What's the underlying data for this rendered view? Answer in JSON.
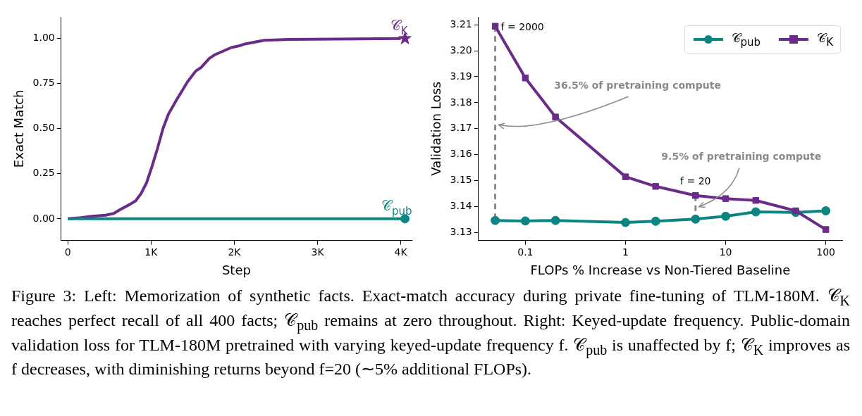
{
  "chart_data": [
    {
      "type": "line",
      "xlabel": "Step",
      "ylabel": "Exact Match",
      "xlim": [
        -80,
        4130
      ],
      "xticks": [
        0,
        {
          "value": 1000,
          "label": "1K"
        },
        {
          "value": 2000,
          "label": "2K"
        },
        {
          "value": 3000,
          "label": "3K"
        },
        {
          "value": 4000,
          "label": "4K"
        }
      ],
      "ylim": [
        -0.12,
        1.12
      ],
      "yticks": [
        {
          "value": 0,
          "label": "0.00"
        },
        {
          "value": 0.25,
          "label": "0.25"
        },
        {
          "value": 0.5,
          "label": "0.50"
        },
        {
          "value": 0.75,
          "label": "0.75"
        },
        {
          "value": 1,
          "label": "1.00"
        }
      ],
      "grid": false,
      "legend": false,
      "series": [
        {
          "name": "𝒞$_{K}$",
          "color": "#6a2c88",
          "marker": "none",
          "x": [
            0,
            158,
            289,
            453,
            552,
            617,
            749,
            815,
            880,
            946,
            1011,
            1077,
            1143,
            1208,
            1307,
            1438,
            1537,
            1603,
            1701,
            1767,
            1964,
            2062,
            2128,
            2358,
            2653,
            4000
          ],
          "values": [
            0,
            0.006,
            0.014,
            0.02,
            0.03,
            0.048,
            0.081,
            0.1,
            0.14,
            0.2,
            0.29,
            0.39,
            0.5,
            0.58,
            0.66,
            0.76,
            0.82,
            0.84,
            0.89,
            0.91,
            0.95,
            0.96,
            0.97,
            0.99,
            0.995,
            1
          ]
        },
        {
          "type": "scatter",
          "color": "#6a2c88",
          "marker": "star",
          "x": [
            4050
          ],
          "values": [
            1
          ]
        },
        {
          "name": "𝒞$_{pub}$",
          "color": "#0c8582",
          "marker": "none",
          "x": [
            0,
            4050
          ],
          "values": [
            0,
            0
          ]
        },
        {
          "type": "scatter",
          "color": "#0c8582",
          "marker": "circle",
          "x": [
            4050
          ],
          "values": [
            0
          ]
        }
      ]
    },
    {
      "type": "line",
      "xlabel": "FLOPs % Increase vs Non-Tiered Baseline",
      "ylabel": "Validation Loss",
      "log": "x",
      "xlim": [
        0.034,
        146
      ],
      "xticks": [
        0.1,
        1,
        10,
        100
      ],
      "ylim": [
        3.127,
        3.213
      ],
      "yticks": [
        3.13,
        3.14,
        3.15,
        3.16,
        3.17,
        3.18,
        3.19,
        {
          "value": 3.2,
          "label": "3.20"
        },
        3.21
      ],
      "grid": false,
      "legend": "top right",
      "x": [
        0.05,
        0.1,
        0.2,
        1,
        2,
        5,
        10,
        20,
        50,
        100
      ],
      "series": [
        {
          "name": "𝒞$_{pub}$",
          "color": "#0c8582",
          "marker": "circle",
          "values": [
            3.1347,
            3.1345,
            3.1347,
            3.1339,
            3.1344,
            3.1352,
            3.1363,
            3.138,
            3.1378,
            3.1384
          ]
        },
        {
          "name": "𝒞$_{K}$",
          "color": "#6a2c88",
          "marker": "square",
          "values": [
            3.2094,
            3.1895,
            3.1745,
            3.1515,
            3.1478,
            3.1443,
            3.1431,
            3.1424,
            3.1384,
            3.1312
          ]
        }
      ],
      "ref_lines": [
        {
          "axis": "x",
          "value": 0.05,
          "label": "36.5% of pretraining compute",
          "color": "#8a8a8a",
          "line_style": "dashed"
        },
        {
          "axis": "x",
          "value": 5,
          "label": "9.5% of pretraining compute",
          "color": "#8a8a8a",
          "line_style": "dashed"
        }
      ],
      "annotations": [
        {
          "text": "f = 2000",
          "x": 0.05,
          "y": 3.2094
        },
        {
          "text": "f = 20",
          "x": 5,
          "y": 3.1443
        }
      ]
    },
    {
      "type": "other",
      "annotations": [
        "Figure 3: Left: Memorization of synthetic facts. Exact-match accuracy during private fine-tuning of TLM-180M. 𝒞$_{K}$ reaches perfect recall of all 400 facts; 𝒞$_{pub}$ remains at zero throughout. Right: Keyed-update frequency. Public-domain validation loss for TLM-180M pretrained with varying keyed-update frequency f. 𝒞$_{pub}$ is unaffected by f; 𝒞$_{K}$ improves as f decreases, with diminishing returns beyond f=20 (∼5% additional FLOPs)."
      ]
    }
  ]
}
